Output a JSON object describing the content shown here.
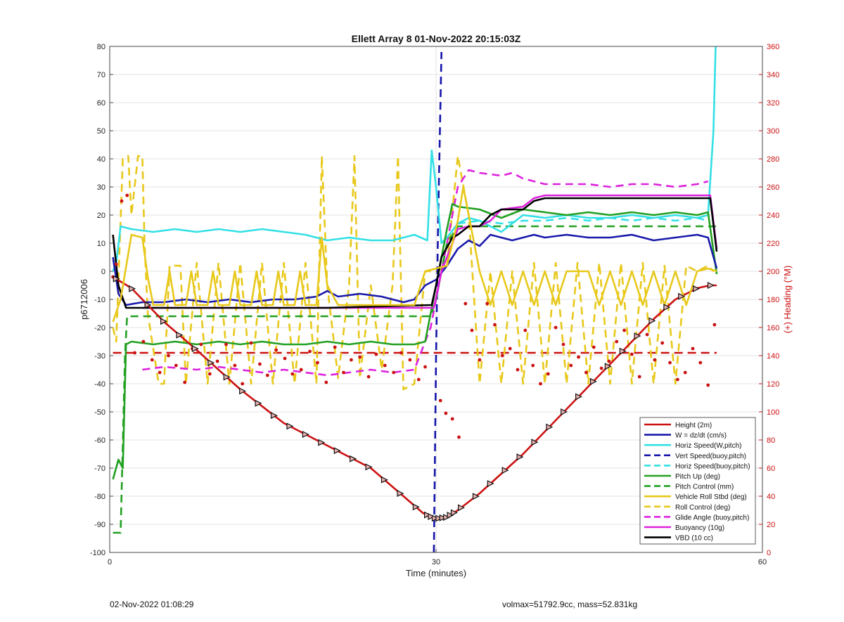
{
  "footer": {
    "left": "02-Nov-2022 01:08:29",
    "right": "volmax=51792.9cc, mass=52.831kg"
  },
  "chart_data": {
    "type": "line",
    "title": "Ellett Array 8 01-Nov-2022 20:15:03Z",
    "xlabel": "Time (minutes)",
    "ylabel": "p6712006",
    "y2label": "(+) Heading (°M)",
    "xlim": [
      0,
      60
    ],
    "ylim": [
      -100,
      80
    ],
    "y2lim": [
      0,
      360
    ],
    "xticks": [
      0,
      30,
      60
    ],
    "yticks": [
      -100,
      -90,
      -80,
      -70,
      -60,
      -50,
      -40,
      -30,
      -20,
      -10,
      0,
      10,
      20,
      30,
      40,
      50,
      60,
      70,
      80
    ],
    "y2ticks": [
      0,
      20,
      40,
      60,
      80,
      100,
      120,
      140,
      160,
      180,
      200,
      220,
      240,
      260,
      280,
      300,
      320,
      340,
      360
    ],
    "grid": true,
    "legend_position": "bottom-right",
    "series": [
      {
        "name": "Height (2m)",
        "color": "#cc1111",
        "dash": "solid",
        "x": [
          0.3,
          2,
          5,
          8,
          12,
          16,
          20,
          24,
          27,
          28.8,
          30,
          31,
          32,
          33,
          34,
          36,
          38,
          40,
          42,
          44,
          46,
          48,
          50,
          52,
          54,
          55.2,
          55.8
        ],
        "y": [
          -2,
          -6,
          -18,
          -28,
          -42,
          -54,
          -62,
          -70,
          -80,
          -86,
          -88,
          -87.5,
          -85,
          -82,
          -79,
          -72,
          -65,
          -57,
          -49,
          -41,
          -33,
          -25,
          -17,
          -10,
          -6,
          -5,
          -5
        ]
      },
      {
        "name": "W = dz/dt (cm/s)",
        "color": "#1a1aaa",
        "dash": "solid",
        "x": [
          0.3,
          0.8,
          1.5,
          3,
          5,
          7,
          9,
          11,
          13,
          15,
          17,
          19,
          20,
          21,
          23,
          25,
          27,
          28,
          29,
          30,
          31,
          32,
          33,
          34,
          35,
          36,
          37,
          38,
          39,
          40,
          42,
          44,
          46,
          48,
          50,
          52,
          54,
          55,
          55.8
        ],
        "y": [
          5,
          -8,
          -12,
          -11,
          -11,
          -10,
          -11,
          -10,
          -11,
          -10,
          -10,
          -9,
          -7,
          -9,
          -8,
          -9,
          -11,
          -10,
          -5,
          -3,
          2,
          8,
          11,
          9,
          13,
          12,
          11,
          12,
          13,
          12,
          13,
          12,
          12,
          13,
          11,
          12,
          13,
          12,
          1
        ]
      },
      {
        "name": "Horiz Speed(W,pitch)",
        "color": "#33e0e6",
        "dash": "solid",
        "x": [
          0.3,
          0.6,
          1,
          2,
          4,
          6,
          8,
          10,
          12,
          14,
          16,
          18,
          20,
          22,
          24,
          26,
          28,
          29.2,
          29.6,
          30,
          30.5,
          31,
          32,
          33,
          34,
          35,
          36,
          38,
          40,
          42,
          44,
          46,
          48,
          50,
          52,
          54,
          55,
          55.5,
          55.7
        ],
        "y": [
          0,
          3,
          16,
          15,
          14,
          15,
          14,
          15,
          14,
          15,
          14,
          13,
          11,
          12,
          11,
          11,
          13,
          11,
          43,
          30,
          10,
          12,
          17,
          19,
          18,
          16,
          14,
          20,
          19,
          20,
          19,
          19,
          20,
          19,
          20,
          19,
          20,
          50,
          80
        ]
      },
      {
        "name": "Vert Speed(buoy,pitch)",
        "color": "#1515aa",
        "dash": "dashed",
        "x": [
          29.8,
          30.0,
          30.2,
          30.5
        ],
        "y": [
          -100,
          -30,
          20,
          78
        ]
      },
      {
        "name": "Horiz Speed(buoy,pitch)",
        "color": "#33e0e6",
        "dash": "dashed",
        "x": [
          32,
          34,
          36,
          38,
          40,
          42,
          44,
          46,
          48,
          50,
          52,
          54,
          55
        ],
        "y": [
          17,
          18,
          17,
          18,
          18,
          19,
          18,
          19,
          18,
          19,
          18,
          19,
          18
        ]
      },
      {
        "name": "Pitch Up (deg)",
        "color": "#22a022",
        "dash": "solid",
        "x": [
          0.3,
          0.8,
          1.2,
          1.5,
          2,
          4,
          6,
          8,
          10,
          12,
          14,
          16,
          18,
          20,
          22,
          24,
          26,
          28,
          29,
          29.5,
          30,
          30.5,
          31,
          31.5,
          32,
          34,
          36,
          38,
          40,
          42,
          44,
          46,
          48,
          50,
          52,
          54,
          55,
          55.8
        ],
        "y": [
          -74,
          -67,
          -70,
          -26,
          -25,
          -26,
          -25,
          -26,
          -25,
          -26,
          -25,
          -26,
          -26,
          -25,
          -26,
          -25,
          -26,
          -26,
          -25,
          -15,
          -5,
          5,
          15,
          24,
          23,
          22,
          19,
          22,
          21,
          20,
          21,
          20,
          21,
          20,
          21,
          20,
          21,
          -1
        ]
      },
      {
        "name": "Pitch Control (mm)",
        "color": "#22a022",
        "dash": "dashed",
        "x": [
          0.3,
          1,
          1.4,
          1.6,
          2,
          10,
          20,
          29.5,
          30,
          30.5,
          31,
          32,
          40,
          50,
          55.8
        ],
        "y": [
          -93,
          -93,
          -30,
          -16,
          -16,
          -16,
          -16,
          -16,
          -10,
          0,
          10,
          16,
          16,
          16,
          16
        ]
      },
      {
        "name": "Vehicle Roll Stbd (deg)",
        "color": "#e8c81a",
        "dash": "solid",
        "x": [
          0.3,
          1,
          2,
          3,
          3.5,
          4,
          5,
          5.5,
          6,
          7,
          7.5,
          8,
          9,
          9.5,
          10,
          11,
          11.5,
          12,
          13,
          13.5,
          14,
          15,
          15.5,
          16,
          17,
          17.5,
          18,
          19,
          19.5,
          20,
          21,
          22,
          23,
          24,
          25,
          26,
          27,
          28,
          29,
          30,
          31,
          32,
          32.5,
          33,
          34,
          35,
          36,
          37,
          38,
          39,
          40,
          41,
          42,
          43,
          44,
          45,
          46,
          47,
          48,
          49,
          50,
          51,
          52,
          53,
          54,
          55,
          55.8
        ],
        "y": [
          -18,
          -10,
          13,
          12,
          -2,
          -12,
          -12,
          0,
          -12,
          -12,
          0,
          -12,
          -12,
          0,
          -12,
          -12,
          0,
          -12,
          -12,
          0,
          -12,
          -12,
          0,
          -12,
          -12,
          0,
          -12,
          -12,
          12,
          -5,
          -12,
          -12,
          -12,
          -12,
          -12,
          -12,
          -12,
          -12,
          0,
          1,
          2,
          18,
          30,
          20,
          0,
          -12,
          0,
          -12,
          0,
          -12,
          0,
          -12,
          0,
          0,
          0,
          -12,
          0,
          -12,
          0,
          -12,
          0,
          -12,
          0,
          -12,
          0,
          1,
          0
        ]
      },
      {
        "name": "Roll Control (deg)",
        "color": "#e8c81a",
        "dash": "dashed",
        "x": [
          0.3,
          0.6,
          1.2,
          1.7,
          2,
          2.6,
          3,
          3.2,
          3.5,
          4.5,
          5,
          5.5,
          6.5,
          7,
          8,
          9,
          10,
          11,
          12,
          13,
          14,
          15,
          16,
          17,
          18,
          19,
          19.5,
          20,
          21,
          22,
          22.5,
          23,
          24,
          25,
          26,
          26.5,
          27,
          28,
          29,
          30,
          31,
          32,
          33,
          34,
          35,
          36,
          37,
          38,
          39,
          40,
          41,
          42,
          43,
          44,
          45,
          46,
          47,
          48,
          49,
          50,
          51,
          52,
          53,
          54,
          55,
          55.5
        ],
        "y": [
          -20,
          -25,
          40,
          41,
          20,
          41,
          41,
          10,
          -15,
          -40,
          -40,
          2,
          2,
          -40,
          3,
          -40,
          3,
          -40,
          3,
          -40,
          3,
          -40,
          3,
          -40,
          3,
          -40,
          41,
          -5,
          -38,
          -5,
          41,
          -38,
          -5,
          -35,
          -5,
          41,
          -42,
          -40,
          0,
          0,
          2,
          41,
          20,
          -40,
          0,
          -40,
          0,
          -40,
          3,
          -40,
          3,
          -40,
          3,
          -40,
          3,
          -40,
          3,
          -40,
          3,
          -40,
          2,
          -40,
          2,
          0,
          2,
          0
        ]
      },
      {
        "name": "Glide Angle (buoy,pitch)",
        "color": "#dd22dd",
        "dash": "dashed",
        "x": [
          3,
          5,
          8,
          10,
          12,
          14,
          16,
          18,
          20,
          22,
          24,
          26,
          28,
          29.5,
          30,
          31,
          32,
          33,
          34,
          36,
          37,
          38,
          40,
          42,
          44,
          46,
          48,
          50,
          52,
          54,
          55
        ],
        "y": [
          -35,
          -34,
          -35,
          -34,
          -35,
          -36,
          -35,
          -36,
          -37,
          -36,
          -35,
          -36,
          -35,
          -20,
          -10,
          10,
          30,
          36,
          35,
          34,
          35,
          33,
          31,
          31,
          31,
          30,
          31,
          31,
          30,
          31,
          32
        ]
      },
      {
        "name": "Buoyancy (10g)",
        "color": "#dd22dd",
        "dash": "solid",
        "x": [
          3,
          10,
          20,
          29.8,
          30.5,
          31.5,
          32,
          33,
          34,
          35,
          36,
          38,
          39,
          40,
          42,
          45,
          50,
          55.2,
          55.8
        ],
        "y": [
          -13,
          -13,
          -13,
          -13,
          0,
          10,
          15,
          16,
          16,
          18,
          22,
          23,
          26,
          27,
          27,
          27,
          27,
          27,
          8
        ]
      },
      {
        "name": "VBD (10 cc)",
        "color": "#000000",
        "dash": "solid",
        "x": [
          0.3,
          0.8,
          1.5,
          5,
          10,
          20,
          29.6,
          30,
          30.5,
          31.5,
          32,
          33,
          34,
          35,
          36,
          38,
          39,
          40,
          42,
          45,
          50,
          55.2,
          55.8
        ],
        "y": [
          13,
          -5,
          -13,
          -13,
          -13,
          -13,
          -12,
          -5,
          5,
          12,
          13,
          16,
          16,
          20,
          22,
          22,
          25,
          26,
          26,
          26,
          26,
          26,
          7
        ]
      }
    ],
    "heading_dots": {
      "color": "#cc1111",
      "axis": "right",
      "x": [
        0.3,
        0.6,
        1.1,
        1.6,
        2.3,
        3.1,
        3.9,
        4.6,
        5.4,
        6.1,
        6.9,
        7.6,
        8.4,
        9.2,
        9.9,
        10.7,
        11.5,
        12.2,
        13.0,
        13.8,
        14.5,
        15.3,
        16.1,
        16.8,
        17.6,
        18.4,
        19.1,
        19.9,
        20.7,
        21.5,
        22.2,
        23.0,
        23.8,
        24.5,
        25.3,
        26.1,
        26.8,
        27.6,
        28.4,
        29.0,
        30.4,
        30.9,
        31.5,
        32.1,
        32.7,
        33.3,
        34.0,
        34.7,
        35.4,
        36.1,
        36.8,
        37.5,
        38.2,
        38.9,
        39.6,
        40.3,
        41.0,
        41.7,
        42.4,
        43.1,
        43.8,
        44.5,
        45.2,
        45.9,
        46.6,
        47.3,
        48.0,
        48.7,
        49.4,
        50.1,
        50.8,
        51.5,
        52.2,
        52.9,
        53.6,
        54.3,
        55.0,
        55.6
      ],
      "y": [
        196,
        205,
        250,
        254,
        142,
        150,
        137,
        128,
        140,
        133,
        121,
        145,
        148,
        127,
        136,
        148,
        133,
        120,
        149,
        134,
        126,
        144,
        138,
        127,
        130,
        143,
        135,
        121,
        146,
        128,
        137,
        139,
        125,
        141,
        133,
        128,
        142,
        137,
        123,
        132,
        108,
        99,
        95,
        82,
        177,
        158,
        137,
        177,
        162,
        140,
        145,
        130,
        158,
        133,
        120,
        127,
        160,
        148,
        133,
        139,
        128,
        146,
        131,
        136,
        150,
        158,
        141,
        125,
        155,
        137,
        149,
        135,
        123,
        128,
        145,
        135,
        119,
        162
      ]
    }
  }
}
